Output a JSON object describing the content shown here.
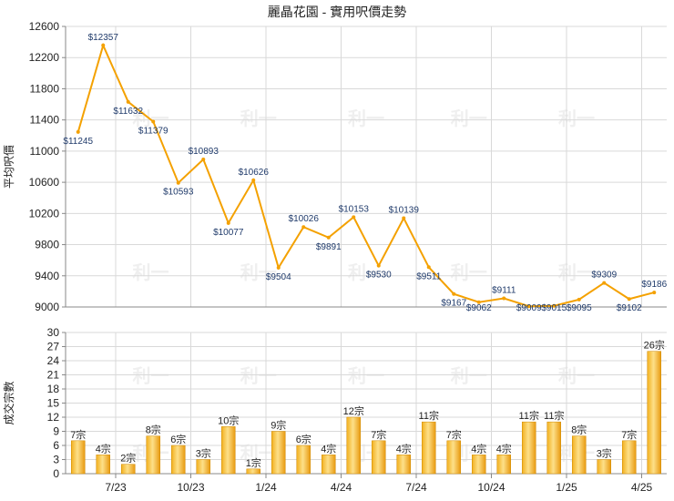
{
  "title": "麗晶花園 - 實用呎價走勢",
  "price_chart": {
    "ylabel": "平均呎價",
    "ylim": [
      9000,
      12600
    ],
    "yticks": [
      9000,
      9400,
      9800,
      10200,
      10600,
      11000,
      11400,
      11800,
      12200,
      12600
    ],
    "yticks_labels": [
      "9000",
      "9400",
      "9800",
      "10200",
      "10600",
      "11000",
      "11400",
      "11800",
      "12200",
      "12600"
    ]
  },
  "count_chart": {
    "ylabel": "成交宗數",
    "ylim": [
      0,
      30
    ],
    "yticks": [
      0,
      3,
      6,
      9,
      12,
      15,
      18,
      21,
      24,
      27,
      30
    ],
    "yticks_labels": [
      "0",
      "3",
      "6",
      "9",
      "12",
      "15",
      "18",
      "21",
      "24",
      "27",
      "30"
    ]
  },
  "x_tick_labels": [
    "7/23",
    "10/23",
    "1/24",
    "4/24",
    "7/24",
    "10/24",
    "1/25",
    "4/25"
  ],
  "x_tick_positions": [
    2.5,
    5.5,
    8.5,
    11.5,
    14.5,
    17.5,
    20.5,
    23.5
  ],
  "watermark": "利一",
  "chart_data": [
    {
      "type": "line",
      "ylabel": "平均呎價",
      "ylim": [
        9000,
        12600
      ],
      "x": [
        1,
        2,
        3,
        4,
        5,
        6,
        7,
        8,
        9,
        10,
        11,
        12,
        13,
        14,
        15,
        16,
        17,
        18,
        19,
        20,
        21,
        22,
        23,
        24
      ],
      "values": [
        11245,
        12357,
        11632,
        11379,
        10593,
        10893,
        10077,
        10626,
        9504,
        10026,
        9891,
        10153,
        9530,
        10139,
        9511,
        9167,
        9062,
        9111,
        9009,
        9015,
        9095,
        9309,
        9102,
        9186
      ],
      "labels": [
        "$11245",
        "$12357",
        "$11632",
        "$11379",
        "$10593",
        "$10893",
        "$10077",
        "$10626",
        "$9504",
        "$10026",
        "$9891",
        "$10153",
        "$9530",
        "$10139",
        "$9511",
        "$9167",
        "$9062",
        "$9111",
        "$9009",
        "$9015",
        "$9095",
        "$9309",
        "$9102",
        "$9186"
      ],
      "color": "#f4a100"
    },
    {
      "type": "bar",
      "ylabel": "成交宗數",
      "ylim": [
        0,
        30
      ],
      "x": [
        1,
        2,
        3,
        4,
        5,
        6,
        7,
        8,
        9,
        10,
        11,
        12,
        13,
        14,
        15,
        16,
        17,
        18,
        19,
        20,
        21,
        22,
        23,
        24
      ],
      "values": [
        7,
        4,
        2,
        8,
        6,
        3,
        10,
        1,
        9,
        6,
        4,
        12,
        7,
        4,
        11,
        7,
        4,
        4,
        11,
        11,
        8,
        3,
        7,
        26
      ],
      "labels": [
        "7宗",
        "4宗",
        "2宗",
        "8宗",
        "6宗",
        "3宗",
        "10宗",
        "1宗",
        "9宗",
        "6宗",
        "4宗",
        "12宗",
        "7宗",
        "4宗",
        "11宗",
        "7宗",
        "4宗",
        "4宗",
        "11宗",
        "11宗",
        "8宗",
        "3宗",
        "7宗",
        "26宗"
      ],
      "color": "#f4b400"
    }
  ]
}
